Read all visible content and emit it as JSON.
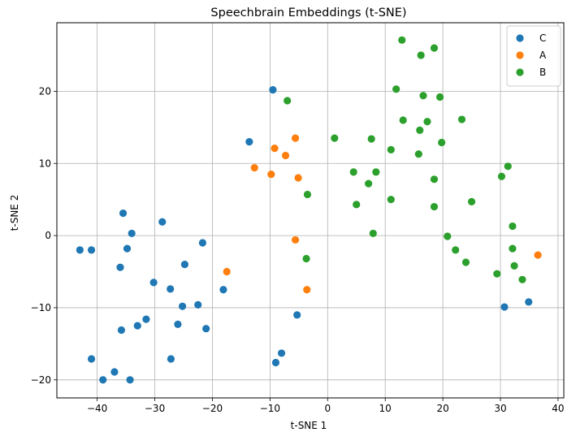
{
  "chart_data": {
    "type": "scatter",
    "title": "Speechbrain Embeddings (t-SNE)",
    "xlabel": "t-SNE 1",
    "ylabel": "t-SNE 2",
    "xlim": [
      -47,
      41
    ],
    "ylim": [
      -22.5,
      29.5
    ],
    "xticks": [
      -40,
      -30,
      -20,
      -10,
      0,
      10,
      20,
      30,
      40
    ],
    "yticks": [
      -20,
      -10,
      0,
      10,
      20
    ],
    "grid": true,
    "legend_position": "top-right",
    "series": [
      {
        "name": "C",
        "color": "#1f77b4",
        "points": [
          [
            -9.5,
            20.2
          ],
          [
            -13.6,
            13.0
          ],
          [
            -35.5,
            3.1
          ],
          [
            -34.0,
            0.3
          ],
          [
            -28.7,
            1.9
          ],
          [
            -43.0,
            -2.0
          ],
          [
            -41.0,
            -2.0
          ],
          [
            -34.8,
            -1.8
          ],
          [
            -21.7,
            -1.0
          ],
          [
            -36.0,
            -4.4
          ],
          [
            -24.8,
            -4.0
          ],
          [
            -30.2,
            -6.5
          ],
          [
            -27.3,
            -7.4
          ],
          [
            -18.1,
            -7.5
          ],
          [
            -25.2,
            -9.8
          ],
          [
            -22.5,
            -9.6
          ],
          [
            -31.5,
            -11.6
          ],
          [
            -33.0,
            -12.5
          ],
          [
            -26.0,
            -12.3
          ],
          [
            -35.8,
            -13.1
          ],
          [
            -21.1,
            -12.9
          ],
          [
            -5.3,
            -11.0
          ],
          [
            -8.0,
            -16.3
          ],
          [
            -9.0,
            -17.6
          ],
          [
            -41.0,
            -17.1
          ],
          [
            -27.2,
            -17.1
          ],
          [
            -37.0,
            -18.9
          ],
          [
            -39.0,
            -20.0
          ],
          [
            -34.3,
            -20.0
          ],
          [
            30.7,
            -9.9
          ],
          [
            34.9,
            -9.2
          ]
        ]
      },
      {
        "name": "A",
        "color": "#ff7f0e",
        "points": [
          [
            -5.6,
            13.5
          ],
          [
            -9.2,
            12.1
          ],
          [
            -7.3,
            11.1
          ],
          [
            -12.7,
            9.4
          ],
          [
            -9.8,
            8.5
          ],
          [
            -5.1,
            8.0
          ],
          [
            -5.6,
            -0.6
          ],
          [
            -17.5,
            -5.0
          ],
          [
            -3.6,
            -7.5
          ],
          [
            36.5,
            -2.7
          ]
        ]
      },
      {
        "name": "B",
        "color": "#2ca02c",
        "points": [
          [
            12.9,
            27.1
          ],
          [
            18.5,
            26.0
          ],
          [
            16.2,
            25.0
          ],
          [
            -7.0,
            18.7
          ],
          [
            11.9,
            20.3
          ],
          [
            16.6,
            19.4
          ],
          [
            19.5,
            19.2
          ],
          [
            13.1,
            16.0
          ],
          [
            17.3,
            15.8
          ],
          [
            23.3,
            16.1
          ],
          [
            16.0,
            14.6
          ],
          [
            1.2,
            13.5
          ],
          [
            7.6,
            13.4
          ],
          [
            19.8,
            12.9
          ],
          [
            11.0,
            11.9
          ],
          [
            15.8,
            11.3
          ],
          [
            4.5,
            8.8
          ],
          [
            8.4,
            8.8
          ],
          [
            31.3,
            9.6
          ],
          [
            30.2,
            8.2
          ],
          [
            18.5,
            7.8
          ],
          [
            7.1,
            7.2
          ],
          [
            -3.5,
            5.7
          ],
          [
            11.0,
            5.0
          ],
          [
            25.0,
            4.7
          ],
          [
            5.0,
            4.3
          ],
          [
            18.5,
            4.0
          ],
          [
            32.1,
            1.3
          ],
          [
            7.9,
            0.3
          ],
          [
            20.8,
            -0.1
          ],
          [
            22.2,
            -2.0
          ],
          [
            32.1,
            -1.8
          ],
          [
            -3.7,
            -3.2
          ],
          [
            24.0,
            -3.7
          ],
          [
            32.4,
            -4.2
          ],
          [
            29.4,
            -5.3
          ],
          [
            33.8,
            -6.1
          ]
        ]
      }
    ]
  }
}
